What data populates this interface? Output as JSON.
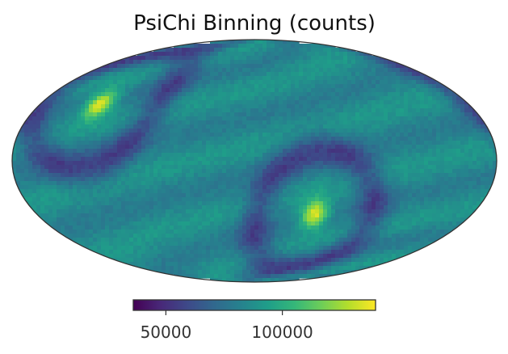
{
  "chart_data": {
    "type": "heatmap",
    "projection": "Mollweide",
    "title": "PsiChi Binning (counts)",
    "colormap": "viridis",
    "colorbar": {
      "orientation": "horizontal",
      "placement": "bottom",
      "range": [
        36000,
        140000
      ],
      "ticks": [
        50000,
        100000
      ],
      "tick_labels": [
        "50000",
        "100000"
      ]
    },
    "hotspots": [
      {
        "label": "upper-left maximum",
        "lon_deg": 130,
        "lat_deg": 35,
        "value": 140000
      },
      {
        "label": "lower-right maximum",
        "lon_deg": -50,
        "lat_deg": -33,
        "value": 140000
      }
    ],
    "background_value": 85000,
    "band_min_value": 60000
  },
  "colors": {
    "viridis": [
      "#440154",
      "#482878",
      "#3e4989",
      "#31688e",
      "#26828e",
      "#1f9e89",
      "#35b779",
      "#6ece58",
      "#b5de2b",
      "#fde725"
    ],
    "outline": "#333333",
    "background": "#ffffff"
  }
}
